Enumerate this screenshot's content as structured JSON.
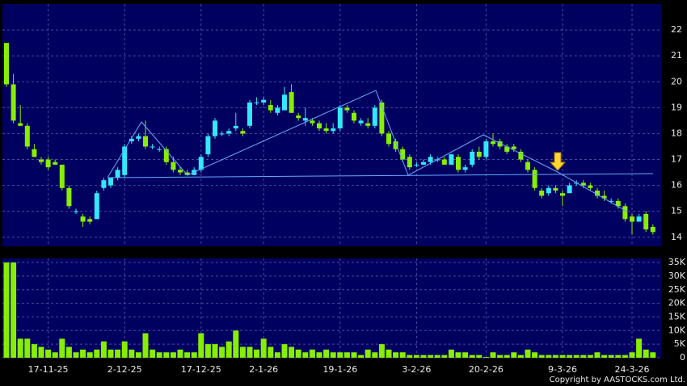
{
  "chart_data": [
    {
      "type": "candlestick",
      "up_color": "#33e8ff",
      "down_color": "#88ee00",
      "open": [
        21.5,
        19.9,
        18.4,
        18.3,
        17.4,
        17.0,
        17.0,
        16.9,
        16.8,
        15.9,
        15.0,
        14.8,
        14.7,
        14.7,
        15.9,
        16.0,
        16.3,
        16.4,
        17.7,
        17.8,
        17.9,
        17.5,
        17.4,
        17.4,
        16.9,
        16.6,
        16.5,
        16.4,
        16.6,
        17.2,
        17.9,
        18.0,
        18.0,
        18.2,
        18.1,
        18.3,
        19.2,
        19.2,
        19.1,
        18.8,
        18.9,
        19.6,
        18.7,
        18.5,
        18.5,
        18.4,
        18.2,
        18.1,
        18.2,
        19.0,
        18.8,
        18.4,
        18.4,
        18.3,
        19.2,
        18.0,
        17.7,
        17.4,
        17.1,
        16.8,
        16.8,
        16.9,
        17.0,
        17.0,
        16.8,
        17.1,
        16.6,
        16.8,
        17.3,
        17.1,
        17.7,
        17.7,
        17.5,
        17.5,
        17.3,
        16.9,
        16.6,
        15.8,
        15.7,
        15.9,
        15.7,
        15.7,
        16.1,
        16.1,
        16.0,
        15.8,
        15.6,
        15.4,
        15.4,
        15.2,
        14.8,
        14.6,
        14.9,
        14.4
      ],
      "high": [
        21.5,
        20.3,
        19.1,
        18.4,
        17.6,
        17.1,
        17.1,
        17.0,
        16.8,
        16.0,
        15.1,
        14.9,
        14.8,
        15.8,
        16.3,
        16.3,
        16.7,
        17.6,
        17.9,
        18.0,
        18.5,
        17.6,
        17.5,
        17.5,
        17.1,
        16.7,
        16.6,
        16.7,
        17.2,
        18.0,
        18.6,
        18.1,
        18.2,
        18.8,
        18.2,
        19.3,
        19.4,
        19.4,
        19.3,
        19.1,
        19.8,
        19.9,
        18.8,
        19.0,
        18.6,
        18.5,
        18.4,
        18.4,
        19.1,
        19.1,
        18.9,
        18.6,
        18.6,
        19.1,
        19.3,
        18.1,
        17.8,
        17.5,
        17.2,
        16.9,
        17.0,
        17.2,
        17.1,
        17.1,
        17.2,
        17.2,
        16.8,
        17.4,
        17.5,
        17.8,
        18.0,
        17.8,
        17.6,
        17.6,
        17.4,
        17.0,
        16.7,
        15.9,
        16.0,
        16.0,
        15.8,
        16.1,
        16.2,
        16.2,
        16.1,
        15.9,
        15.8,
        15.5,
        15.5,
        15.3,
        14.9,
        14.9,
        15.0,
        14.5
      ],
      "low": [
        19.8,
        18.4,
        18.3,
        17.4,
        17.1,
        16.8,
        16.6,
        16.8,
        15.8,
        15.1,
        14.9,
        14.4,
        14.5,
        14.7,
        15.8,
        15.9,
        16.2,
        16.3,
        17.6,
        17.7,
        17.4,
        17.4,
        17.3,
        16.8,
        16.5,
        16.4,
        16.4,
        16.4,
        16.5,
        17.1,
        17.8,
        17.9,
        17.9,
        18.1,
        17.9,
        18.2,
        19.1,
        19.1,
        18.8,
        18.7,
        18.9,
        18.8,
        18.5,
        18.3,
        18.3,
        18.1,
        18.0,
        18.0,
        18.1,
        18.8,
        18.4,
        18.3,
        18.2,
        18.2,
        17.9,
        17.5,
        17.3,
        16.9,
        16.6,
        16.7,
        16.8,
        16.8,
        16.9,
        16.8,
        16.8,
        16.5,
        16.5,
        16.7,
        17.0,
        17.0,
        17.5,
        17.4,
        17.2,
        17.3,
        16.9,
        16.5,
        15.8,
        15.5,
        15.6,
        15.7,
        15.2,
        15.7,
        16.0,
        15.9,
        15.8,
        15.5,
        15.4,
        15.3,
        15.1,
        14.6,
        14.1,
        14.6,
        14.2,
        14.1
      ],
      "close": [
        19.9,
        18.5,
        18.3,
        17.5,
        17.1,
        16.9,
        16.7,
        16.8,
        15.9,
        15.2,
        15.0,
        14.6,
        14.6,
        15.7,
        16.2,
        16.3,
        16.6,
        17.5,
        17.8,
        17.9,
        17.5,
        17.5,
        17.4,
        16.9,
        16.6,
        16.5,
        16.4,
        16.6,
        17.1,
        17.9,
        18.5,
        18.0,
        18.1,
        18.3,
        18.0,
        19.2,
        19.2,
        19.3,
        18.9,
        19.0,
        19.5,
        18.8,
        18.6,
        18.6,
        18.4,
        18.2,
        18.1,
        18.2,
        19.0,
        18.9,
        18.5,
        18.5,
        18.3,
        19.0,
        18.0,
        17.6,
        17.4,
        17.0,
        16.7,
        16.8,
        16.9,
        17.1,
        17.0,
        16.8,
        17.2,
        16.6,
        16.7,
        17.3,
        17.1,
        17.7,
        17.6,
        17.5,
        17.3,
        17.4,
        17.0,
        16.6,
        15.9,
        15.6,
        15.9,
        15.8,
        15.6,
        16.0,
        16.1,
        16.0,
        15.9,
        15.6,
        15.5,
        15.4,
        15.2,
        14.7,
        14.6,
        14.8,
        14.3,
        14.2
      ],
      "ylim": [
        13.65,
        23.0
      ],
      "yticks": [
        14,
        15,
        16,
        17,
        18,
        19,
        20,
        21,
        22
      ],
      "grid": true
    },
    {
      "type": "bar",
      "color": "#88ee00",
      "x": [
        null,
        null,
        null,
        null,
        null,
        null,
        "17-11-25",
        null,
        null,
        null,
        null,
        null,
        null,
        null,
        null,
        null,
        null,
        "2-12-25",
        null,
        null,
        null,
        null,
        null,
        null,
        null,
        null,
        null,
        null,
        "17-12-25",
        null,
        null,
        null,
        null,
        null,
        null,
        null,
        null,
        "2-1-26",
        null,
        null,
        null,
        null,
        null,
        null,
        null,
        null,
        null,
        null,
        "19-1-26",
        null,
        null,
        null,
        null,
        null,
        null,
        null,
        null,
        null,
        null,
        "3-2-26",
        null,
        null,
        null,
        null,
        null,
        null,
        null,
        null,
        null,
        "20-2-26",
        null,
        null,
        null,
        null,
        null,
        null,
        null,
        null,
        null,
        null,
        "9-3-26",
        null,
        null,
        null,
        null,
        null,
        null,
        null,
        null,
        null,
        "24-3-26",
        null,
        null,
        null
      ],
      "values": [
        35000,
        35000,
        7000,
        7000,
        5000,
        4000,
        3000,
        2000,
        7000,
        4000,
        2000,
        3000,
        2000,
        3000,
        6000,
        3000,
        3000,
        6000,
        3000,
        2000,
        9000,
        3000,
        2000,
        2000,
        2000,
        3000,
        2000,
        2000,
        9000,
        5000,
        5000,
        4000,
        6000,
        10000,
        4000,
        4000,
        3000,
        7000,
        4000,
        2000,
        5000,
        4000,
        3000,
        2000,
        3000,
        2000,
        3000,
        2000,
        2000,
        2000,
        2000,
        1000,
        3000,
        2000,
        5000,
        3000,
        2000,
        2000,
        1000,
        1000,
        1000,
        1000,
        1000,
        1000,
        3000,
        2000,
        2000,
        1000,
        1000,
        300,
        2000,
        1000,
        1000,
        2000,
        1000,
        3000,
        2000,
        1000,
        1000,
        1000,
        1000,
        1000,
        1000,
        1000,
        1000,
        2000,
        1000,
        1000,
        1000,
        1000,
        2000,
        7000,
        3000,
        2000
      ],
      "ylim": [
        0,
        36500
      ],
      "yticks": [
        {
          "value": 0,
          "label": "0"
        },
        {
          "value": 5000,
          "label": "5K"
        },
        {
          "value": 10000,
          "label": "10K"
        },
        {
          "value": 15000,
          "label": "15K"
        },
        {
          "value": 20000,
          "label": "20K"
        },
        {
          "value": 25000,
          "label": "25K"
        },
        {
          "value": 30000,
          "label": "30K"
        },
        {
          "value": 35000,
          "label": "35K"
        }
      ],
      "grid": true
    }
  ],
  "copyright": "Copyright by AASTOCKS.com Ltd."
}
